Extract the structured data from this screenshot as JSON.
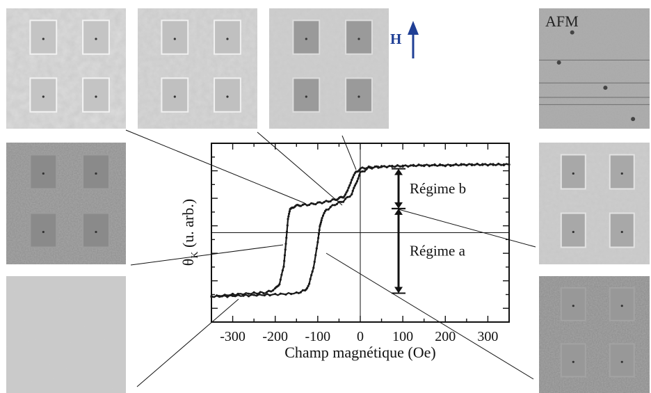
{
  "labels": {
    "afm": "AFM",
    "field_arrow": "H"
  },
  "colors": {
    "arrow": "#1f3f95",
    "curve": "#1a1a1a"
  },
  "micrographs": [
    {
      "id": "top-1",
      "pads": "bright"
    },
    {
      "id": "top-2",
      "pads": "bright"
    },
    {
      "id": "top-3",
      "pads": "dark"
    },
    {
      "id": "afm",
      "pads": "none"
    },
    {
      "id": "left-2",
      "pads": "faint"
    },
    {
      "id": "right-2",
      "pads": "dark"
    },
    {
      "id": "left-3",
      "pads": "none"
    },
    {
      "id": "right-3",
      "pads": "faint"
    }
  ],
  "chart_data": {
    "type": "line",
    "xlabel": "Champ magnétique (Oe)",
    "ylabel": "θK (u. arb.)",
    "ylabel_main": "θ",
    "ylabel_sub": "K",
    "ylabel_rest": " (u. arb.)",
    "xlim": [
      -350,
      350
    ],
    "ylim": [
      -1.3,
      1.3
    ],
    "xticks": [
      -300,
      -200,
      -100,
      0,
      100,
      200,
      300
    ],
    "xtick_labels": [
      "-300",
      "-200",
      "-100",
      "0",
      "100",
      "200",
      "300"
    ],
    "series": [
      {
        "x": [
          -350,
          -300,
          -250,
          -220,
          -200,
          -190,
          -180,
          -175,
          -170,
          -165,
          -160,
          -150,
          -140,
          -120,
          -100,
          -80,
          -60,
          -50,
          -40,
          -30,
          -20,
          -10,
          0,
          20,
          50,
          100,
          150,
          200,
          250,
          300,
          350
        ],
        "y": [
          -0.93,
          -0.9,
          -0.88,
          -0.87,
          -0.82,
          -0.74,
          -0.5,
          -0.15,
          0.2,
          0.33,
          0.37,
          0.39,
          0.4,
          0.41,
          0.43,
          0.45,
          0.48,
          0.5,
          0.52,
          0.6,
          0.78,
          0.88,
          0.93,
          0.95,
          0.96,
          0.97,
          0.98,
          0.98,
          0.99,
          0.99,
          0.99
        ]
      },
      {
        "x": [
          -350,
          -300,
          -250,
          -200,
          -150,
          -130,
          -120,
          -110,
          -100,
          -95,
          -90,
          -80,
          -60,
          -40,
          -20,
          -10,
          0,
          20,
          50,
          100,
          150,
          200,
          250,
          300,
          350
        ],
        "y": [
          -0.93,
          -0.92,
          -0.91,
          -0.9,
          -0.88,
          -0.84,
          -0.75,
          -0.5,
          -0.15,
          0.1,
          0.22,
          0.33,
          0.41,
          0.46,
          0.56,
          0.72,
          0.87,
          0.94,
          0.96,
          0.97,
          0.98,
          0.98,
          0.99,
          0.99,
          0.99
        ]
      }
    ],
    "annotations": [
      {
        "text": "Régime b",
        "x": 90,
        "y_from": 0.93,
        "y_to": 0.35
      },
      {
        "text": "Régime a",
        "x": 90,
        "y_from": 0.35,
        "y_to": -0.88
      }
    ],
    "reference_lines": {
      "x0": 0,
      "y0": 0
    }
  }
}
